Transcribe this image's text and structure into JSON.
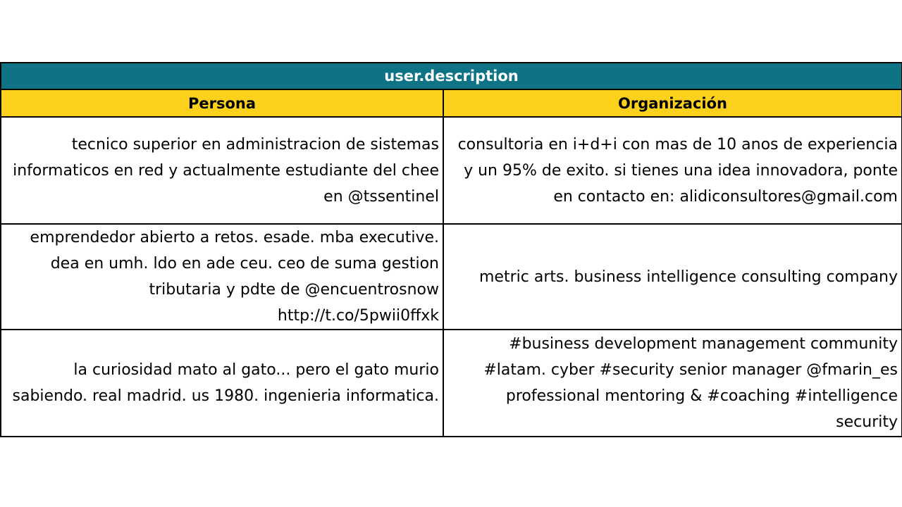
{
  "table": {
    "title": "user.description",
    "headers": [
      "Persona",
      "Organización"
    ],
    "rows": [
      {
        "persona": "tecnico superior en administracion de sistemas informaticos en red y actualmente estudiante del chee en @tssentinel",
        "organizacion": "consultoria en i+d+i con mas de 10 anos de experiencia y un 95% de exito. si tienes una idea innovadora, ponte en contacto en: alidiconsultores@gmail.com"
      },
      {
        "persona": "emprendedor abierto a retos. esade. mba executive. dea en umh. ldo en ade ceu. ceo de suma gestion tributaria y pdte de @encuentrosnow http://t.co/5pwii0ffxk",
        "organizacion": "metric arts. business intelligence consulting company"
      },
      {
        "persona": "la curiosidad mato al gato... pero el gato murio sabiendo. real madrid. us 1980. ingenieria informatica.",
        "organizacion": "#business development management community #latam. cyber #security senior manager @fmarin_es professional mentoring & #coaching #intelligence security"
      }
    ]
  },
  "colors": {
    "title_bg": "#0e7385",
    "header_bg": "#fdd11c",
    "border": "#000000"
  }
}
